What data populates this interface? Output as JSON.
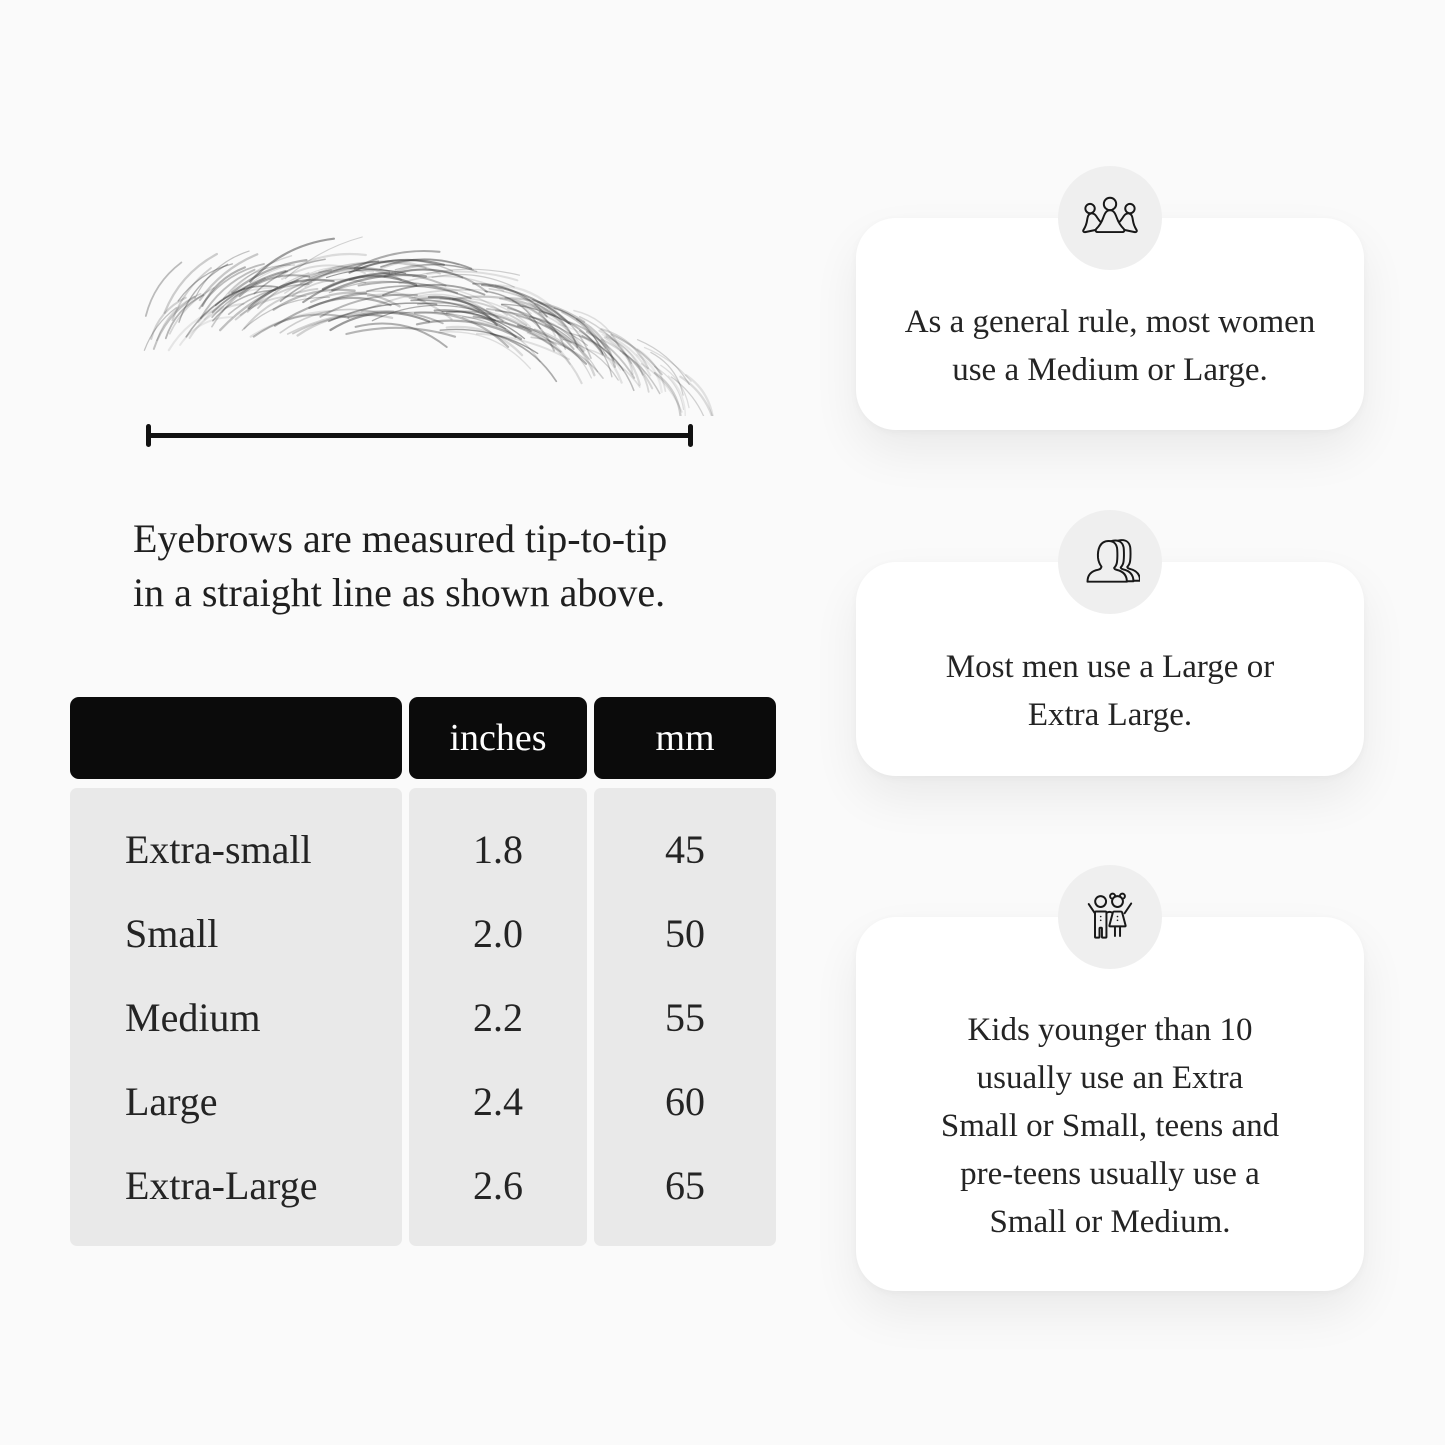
{
  "measurement": {
    "caption_lines": [
      "Eyebrows are measured tip-to-tip",
      "in a straight line as shown above."
    ]
  },
  "table": {
    "col_headers": [
      "",
      "inches",
      "mm"
    ],
    "rows": [
      {
        "size": "Extra-small",
        "inches": "1.8",
        "mm": "45"
      },
      {
        "size": "Small",
        "inches": "2.0",
        "mm": "50"
      },
      {
        "size": "Medium",
        "inches": "2.2",
        "mm": "55"
      },
      {
        "size": "Large",
        "inches": "2.4",
        "mm": "60"
      },
      {
        "size": "Extra-Large",
        "inches": "2.6",
        "mm": "65"
      }
    ]
  },
  "cards": [
    {
      "icon": "women-group-icon",
      "lines": [
        "As a general rule, most women",
        "use a Medium or Large."
      ]
    },
    {
      "icon": "men-group-icon",
      "lines": [
        "Most men use a Large or",
        "Extra Large."
      ]
    },
    {
      "icon": "children-icon",
      "lines": [
        "Kids younger than 10",
        "usually use an Extra",
        "Small or Small, teens and",
        "pre-teens usually use a",
        "Small or Medium."
      ]
    }
  ],
  "colors": {
    "page_bg": "#fafafa",
    "card_bg": "#ffffff",
    "icon_circle_bg": "#efefef",
    "table_header_bg": "#0b0b0b",
    "table_header_text": "#ffffff",
    "table_body_bg": "#e9e9e9",
    "ink": "#1f1f1f",
    "line": "#111111"
  }
}
